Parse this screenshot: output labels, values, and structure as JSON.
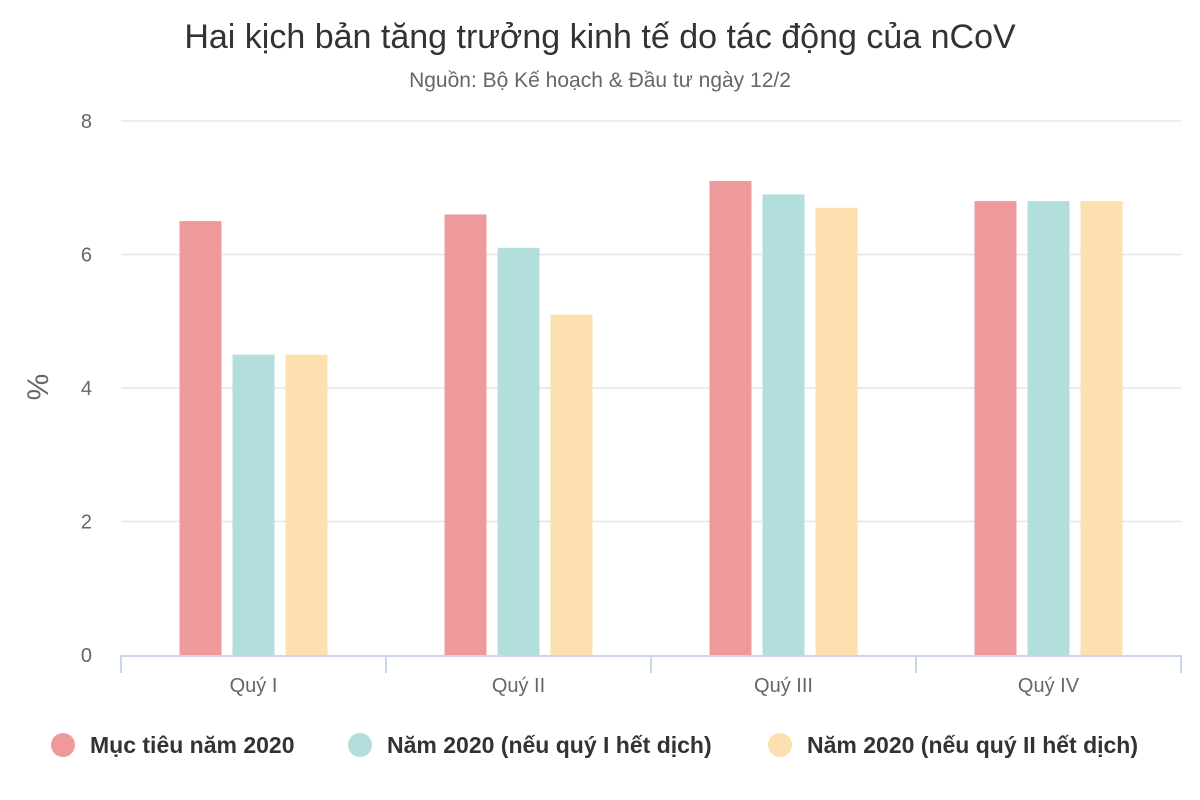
{
  "chart_data": {
    "type": "bar",
    "title": "Hai kịch bản tăng trưởng kinh tế do tác động của nCoV",
    "subtitle": "Nguồn: Bộ Kế hoạch & Đầu tư ngày 12/2",
    "ylabel": "%",
    "xlabel": "",
    "ylim": [
      0,
      8
    ],
    "yticks": [
      0,
      2,
      4,
      6,
      8
    ],
    "grid": true,
    "legend_position": "bottom",
    "categories": [
      "Quý I",
      "Quý II",
      "Quý III",
      "Quý IV"
    ],
    "series": [
      {
        "name": "Mục tiêu năm 2020",
        "color": "#ee9a9b",
        "values": [
          6.5,
          6.6,
          7.1,
          6.8
        ]
      },
      {
        "name": "Năm 2020 (nếu quý I hết dịch)",
        "color": "#b2dfdc",
        "values": [
          4.5,
          6.1,
          6.9,
          6.8
        ]
      },
      {
        "name": "Năm 2020 (nếu quý II hết dịch)",
        "color": "#fde0b0",
        "values": [
          4.5,
          5.1,
          6.7,
          6.8
        ]
      }
    ]
  }
}
